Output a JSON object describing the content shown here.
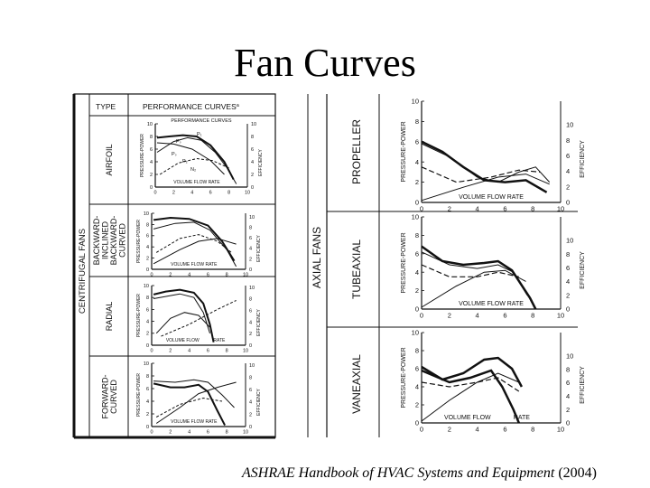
{
  "title": "Fan Curves",
  "caption": {
    "italic": "ASHRAE Handbook of HVAC Systems and Equipment",
    "year": " (2004)"
  },
  "centrifugal": {
    "group_label": "CENTRIFUGAL FANS",
    "header_type": "TYPE",
    "header_curves": "PERFORMANCE CURVES",
    "header_sup": "a",
    "rows": [
      {
        "type_lines": [
          "AIRFOIL"
        ],
        "ylabel": "PRESSURE-POWER",
        "elabel": "EFFICIENCY",
        "xlabel": "VOLUME FLOW RATE",
        "subtitle": "PERFORMANCE CURVES",
        "curve_labels": [
          "P₁",
          "Pₛ",
          "Pₛ",
          "P₂",
          "N₂"
        ],
        "left_ticks": [
          "10",
          "8",
          "6",
          "4",
          "2",
          "0"
        ],
        "right_ticks": [
          "10",
          "8",
          "6",
          "4",
          "2",
          "0"
        ],
        "x_ticks": [
          "0",
          "2",
          "4",
          "6",
          "8",
          "10"
        ]
      },
      {
        "type_lines": [
          "BACKWARD-",
          "INCLINED",
          "BACKWARD-",
          "CURVED"
        ],
        "ylabel": "PRESSURE-POWER",
        "elabel": "EFFICIENCY",
        "xlabel": "VOLUME FLOW RATE",
        "left_ticks": [
          "10",
          "8",
          "6",
          "4",
          "2",
          "0"
        ],
        "right_ticks": [
          "10",
          "8",
          "6",
          "4",
          "2",
          "0"
        ],
        "x_ticks": [
          "0",
          "2",
          "4",
          "6",
          "8",
          "10"
        ]
      },
      {
        "type_lines": [
          "RADIAL"
        ],
        "ylabel": "PRESSURE-POWER",
        "elabel": "EFFICIENCY",
        "xlabel_a": "VOLUME FLOW",
        "xlabel_b": "RATE",
        "left_ticks": [
          "10",
          "8",
          "6",
          "4",
          "2",
          "0"
        ],
        "right_ticks": [
          "10",
          "8",
          "6",
          "4",
          "2",
          "0"
        ],
        "x_ticks": [
          "0",
          "2",
          "4",
          "6",
          "8",
          "10"
        ]
      },
      {
        "type_lines": [
          "FORWARD-",
          "CURVED"
        ],
        "ylabel": "PRESSURE-POWER",
        "elabel": "EFFICIENCY",
        "xlabel": "VOLUME FLOW RATE",
        "left_ticks": [
          "10",
          "8",
          "6",
          "4",
          "2",
          "0"
        ],
        "right_ticks": [
          "10",
          "8",
          "6",
          "4",
          "2",
          "0"
        ],
        "x_ticks": [
          "0",
          "2",
          "4",
          "6",
          "8",
          "10"
        ]
      }
    ]
  },
  "axial": {
    "group_label": "AXIAL FANS",
    "rows": [
      {
        "type": "PROPELLER",
        "ylabel": "PRESSURE-POWER",
        "elabel": "EFFICIENCY",
        "xlabel": "VOLUME FLOW RATE",
        "left_ticks": [
          "10",
          "8",
          "6",
          "4",
          "2",
          "0"
        ],
        "right_ticks": [
          "10",
          "8",
          "6",
          "4",
          "2",
          "0"
        ],
        "x_ticks": [
          "0",
          "2",
          "4",
          "6",
          "8",
          "10"
        ]
      },
      {
        "type": "TUBEAXIAL",
        "ylabel": "PRESSURE-POWER",
        "elabel": "EFFICIENCY",
        "xlabel": "VOLUME FLOW RATE",
        "left_ticks": [
          "10",
          "8",
          "6",
          "4",
          "2",
          "0"
        ],
        "right_ticks": [
          "10",
          "8",
          "6",
          "4",
          "2",
          "0"
        ],
        "x_ticks": [
          "0",
          "2",
          "4",
          "6",
          "8",
          "10"
        ]
      },
      {
        "type": "VANEAXIAL",
        "ylabel": "PRESSURE-POWER",
        "elabel": "EFFICIENCY",
        "xlabel_a": "VOLUME FLOW",
        "xlabel_b": "RATE",
        "left_ticks": [
          "10",
          "8",
          "6",
          "4",
          "2",
          "0"
        ],
        "right_ticks": [
          "10",
          "8",
          "6",
          "4",
          "2",
          "0"
        ],
        "x_ticks": [
          "0",
          "2",
          "4",
          "6",
          "8",
          "10"
        ]
      }
    ]
  }
}
